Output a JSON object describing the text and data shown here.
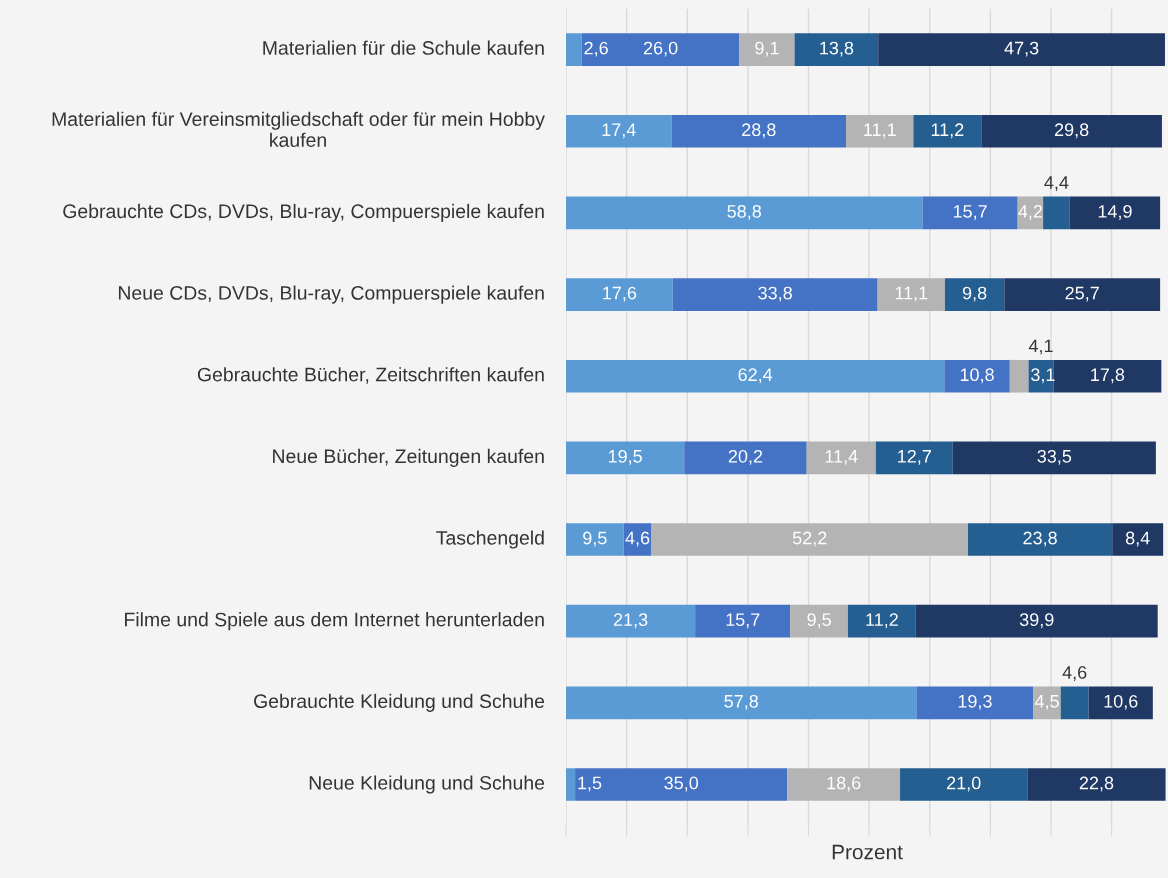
{
  "chart_data": {
    "type": "bar",
    "orientation": "horizontal",
    "stacked": true,
    "xlabel": "Prozent",
    "categories": [
      "Materialien für die Schule kaufen",
      "Materialien für Vereinsmitgliedschaft oder für mein Hobby kaufen",
      "Gebrauchte CDs, DVDs, Blu-ray, Compuerspiele kaufen",
      "Neue CDs, DVDs, Blu-ray, Compuerspiele kaufen",
      "Gebrauchte Bücher, Zeitschriften kaufen",
      "Neue Bücher, Zeitungen kaufen",
      "Taschengeld",
      "Filme und Spiele aus dem Internet herunterladen",
      "Gebrauchte Kleidung und Schuhe",
      "Neue Kleidung und Schuhe"
    ],
    "series": [
      {
        "color": "#5b9bd5",
        "values": [
          2.6,
          17.4,
          58.8,
          17.6,
          62.4,
          19.5,
          9.5,
          21.3,
          57.8,
          1.5
        ],
        "value_labels": [
          "2,6",
          "17,4",
          "58,8",
          "17,6",
          "62,4",
          "19,5",
          "9,5",
          "21,3",
          "57,8",
          "1,5"
        ]
      },
      {
        "color": "#4472c4",
        "values": [
          26.0,
          28.8,
          15.7,
          33.8,
          10.8,
          20.2,
          4.6,
          15.7,
          19.3,
          35.0
        ],
        "value_labels": [
          "26,0",
          "28,8",
          "15,7",
          "33,8",
          "10,8",
          "20,2",
          "4,6",
          "15,7",
          "19,3",
          "35,0"
        ]
      },
      {
        "color": "#b4b4b4",
        "values": [
          9.1,
          11.1,
          4.2,
          11.1,
          3.1,
          11.4,
          52.2,
          9.5,
          4.5,
          18.6
        ],
        "value_labels": [
          "9,1",
          "11,1",
          "4,2",
          "11,1",
          "3,1",
          "11,4",
          "52,2",
          "9,5",
          "4,5",
          "18,6"
        ]
      },
      {
        "color": "#255e91",
        "values": [
          13.8,
          11.2,
          4.4,
          9.8,
          4.1,
          12.7,
          23.8,
          11.2,
          4.6,
          21.0
        ],
        "value_labels": [
          "13,8",
          "11,2",
          "4,4",
          "9,8",
          "4,1",
          "12,7",
          "23,8",
          "11,2",
          "4,6",
          "21,0"
        ]
      },
      {
        "color": "#203864",
        "values": [
          47.3,
          29.8,
          14.9,
          25.7,
          17.8,
          33.5,
          8.4,
          39.9,
          10.6,
          22.8
        ],
        "value_labels": [
          "47,3",
          "29,8",
          "14,9",
          "25,7",
          "17,8",
          "33,5",
          "8,4",
          "39,9",
          "10,6",
          "22,8"
        ]
      }
    ],
    "xlim": [
      0,
      99.3
    ],
    "xticks": [
      {
        "value": 0,
        "label": null
      },
      {
        "value": 10,
        "label": null
      },
      {
        "value": 20,
        "label": null
      },
      {
        "value": 30,
        "label": null
      },
      {
        "value": 40,
        "label": null
      },
      {
        "value": 50,
        "label": null
      },
      {
        "value": 60,
        "label": null
      },
      {
        "value": 70,
        "label": null
      },
      {
        "value": 80,
        "label": null
      },
      {
        "value": 90,
        "label": null
      }
    ],
    "grid": "x",
    "legend": false,
    "tick_labels": "y"
  }
}
